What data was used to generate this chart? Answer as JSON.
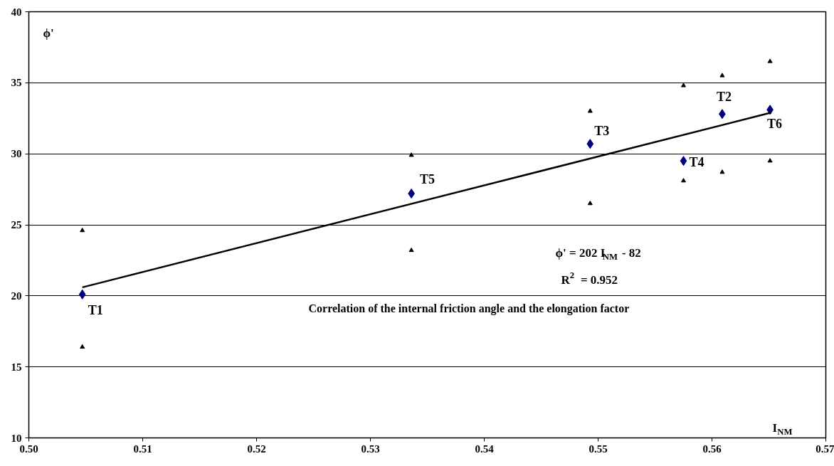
{
  "chart_data": {
    "type": "scatter",
    "xlabel": "I$_{NM}$",
    "ylabel": "ϕ'",
    "xlim": [
      0.5,
      0.57
    ],
    "ylim": [
      10,
      40
    ],
    "xticks": [
      {
        "value": 0.5,
        "label": "0.50"
      },
      {
        "value": 0.51,
        "label": "0.51"
      },
      {
        "value": 0.52,
        "label": "0.52"
      },
      {
        "value": 0.53,
        "label": "0.53"
      },
      {
        "value": 0.54,
        "label": "0.54"
      },
      {
        "value": 0.55,
        "label": "0.55"
      },
      {
        "value": 0.56,
        "label": "0.56"
      },
      {
        "value": 0.57,
        "label": "0.57"
      }
    ],
    "yticks": [
      10,
      15,
      20,
      25,
      30,
      35,
      40
    ],
    "grid": "y",
    "series": [
      {
        "marker": "diamond",
        "color": "#00007f",
        "x": [
          0.5047,
          0.5336,
          0.5493,
          0.5575,
          0.5609,
          0.5651
        ],
        "values": [
          20.1,
          27.2,
          30.7,
          29.5,
          32.8,
          33.1
        ]
      },
      {
        "marker": "triangle",
        "color": "#000000",
        "x": [
          0.5047,
          0.5047,
          0.5336,
          0.5336,
          0.5493,
          0.5493,
          0.5575,
          0.5575,
          0.5609,
          0.5609,
          0.5651,
          0.5651
        ],
        "values": [
          24.6,
          16.4,
          29.9,
          23.2,
          33.0,
          26.5,
          34.8,
          28.1,
          35.5,
          28.7,
          36.5,
          29.5
        ]
      },
      {
        "type": "line",
        "color": "#000000",
        "x": [
          0.5047,
          0.5652
        ],
        "values": [
          20.6,
          32.9
        ]
      }
    ],
    "annotations": [
      {
        "text": "T1",
        "x": 0.5047,
        "y": 20.1
      },
      {
        "text": "T5",
        "x": 0.5336,
        "y": 27.2
      },
      {
        "text": "T3",
        "x": 0.5493,
        "y": 30.7
      },
      {
        "text": "T4",
        "x": 0.5575,
        "y": 29.5
      },
      {
        "text": "T2",
        "x": 0.5609,
        "y": 32.8
      },
      {
        "text": "T6",
        "x": 0.5651,
        "y": 33.1
      },
      "ϕ' = 202 I$_{NM}$ - 82",
      "R$^{2}$ = 0.952",
      "Correlation of the internal friction angle and the elongation factor"
    ]
  }
}
